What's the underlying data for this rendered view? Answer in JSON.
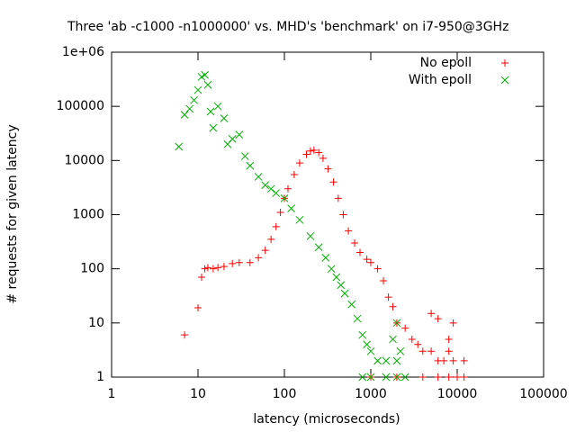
{
  "chart_data": {
    "type": "scatter",
    "title": "Three 'ab -c1000 -n1000000' vs. MHD's 'benchmark' on i7-950@3GHz",
    "x_label": "latency (microseconds)",
    "y_label": "# requests for given latency",
    "log_x": true,
    "log_y": true,
    "xlim": [
      1,
      100000
    ],
    "ylim": [
      1,
      1000000
    ],
    "xticks": [
      1,
      10,
      100,
      1000,
      10000,
      100000
    ],
    "yticks": [
      1,
      10,
      100,
      1000,
      10000,
      100000,
      {
        "value": 1000000,
        "label": "1e+06"
      }
    ],
    "legend": "top-right",
    "series": [
      {
        "name": "No epoll",
        "color": "#ff0000",
        "marker": "plus",
        "x": [
          7,
          10,
          11,
          12,
          13,
          15,
          17,
          20,
          25,
          30,
          40,
          50,
          60,
          70,
          80,
          90,
          100,
          110,
          130,
          150,
          180,
          200,
          220,
          250,
          280,
          320,
          370,
          420,
          480,
          550,
          650,
          750,
          900,
          1000,
          1200,
          1400,
          1600,
          1800,
          2000,
          2500,
          3000,
          3500,
          4000,
          5000,
          6000,
          7000,
          8000,
          9000,
          12000,
          1000,
          2000,
          4000,
          6000,
          8000,
          10000,
          12000,
          5000,
          6000,
          8000,
          9000
        ],
        "values": [
          6,
          19,
          70,
          100,
          105,
          100,
          105,
          110,
          125,
          130,
          130,
          160,
          220,
          350,
          600,
          1100,
          2000,
          3000,
          5500,
          9000,
          13000,
          15000,
          15500,
          14000,
          11000,
          7000,
          4000,
          2000,
          1000,
          500,
          300,
          200,
          150,
          130,
          100,
          60,
          30,
          20,
          10,
          8,
          5,
          4,
          3,
          3,
          2,
          2,
          3,
          2,
          2,
          1,
          1,
          1,
          1,
          1,
          1,
          1,
          15,
          12,
          5,
          10
        ]
      },
      {
        "name": "With epoll",
        "color": "#00b000",
        "marker": "cross",
        "x": [
          6,
          7,
          8,
          9,
          10,
          11,
          12,
          13,
          14,
          15,
          17,
          20,
          22,
          25,
          30,
          35,
          40,
          50,
          60,
          70,
          80,
          100,
          120,
          150,
          200,
          250,
          300,
          350,
          400,
          450,
          500,
          600,
          700,
          800,
          900,
          1000,
          1200,
          1500,
          2000,
          800,
          1000,
          1500,
          2000,
          2500,
          1800,
          2200,
          2000
        ],
        "values": [
          18000,
          70000,
          90000,
          130000,
          200000,
          350000,
          380000,
          250000,
          80000,
          40000,
          100000,
          60000,
          20000,
          25000,
          30000,
          12000,
          8000,
          5000,
          3500,
          3000,
          2500,
          2000,
          1300,
          800,
          400,
          250,
          160,
          100,
          70,
          50,
          35,
          22,
          12,
          6,
          4,
          3,
          2,
          2,
          2,
          1,
          1,
          1,
          1,
          1,
          5,
          3,
          10
        ]
      }
    ]
  }
}
